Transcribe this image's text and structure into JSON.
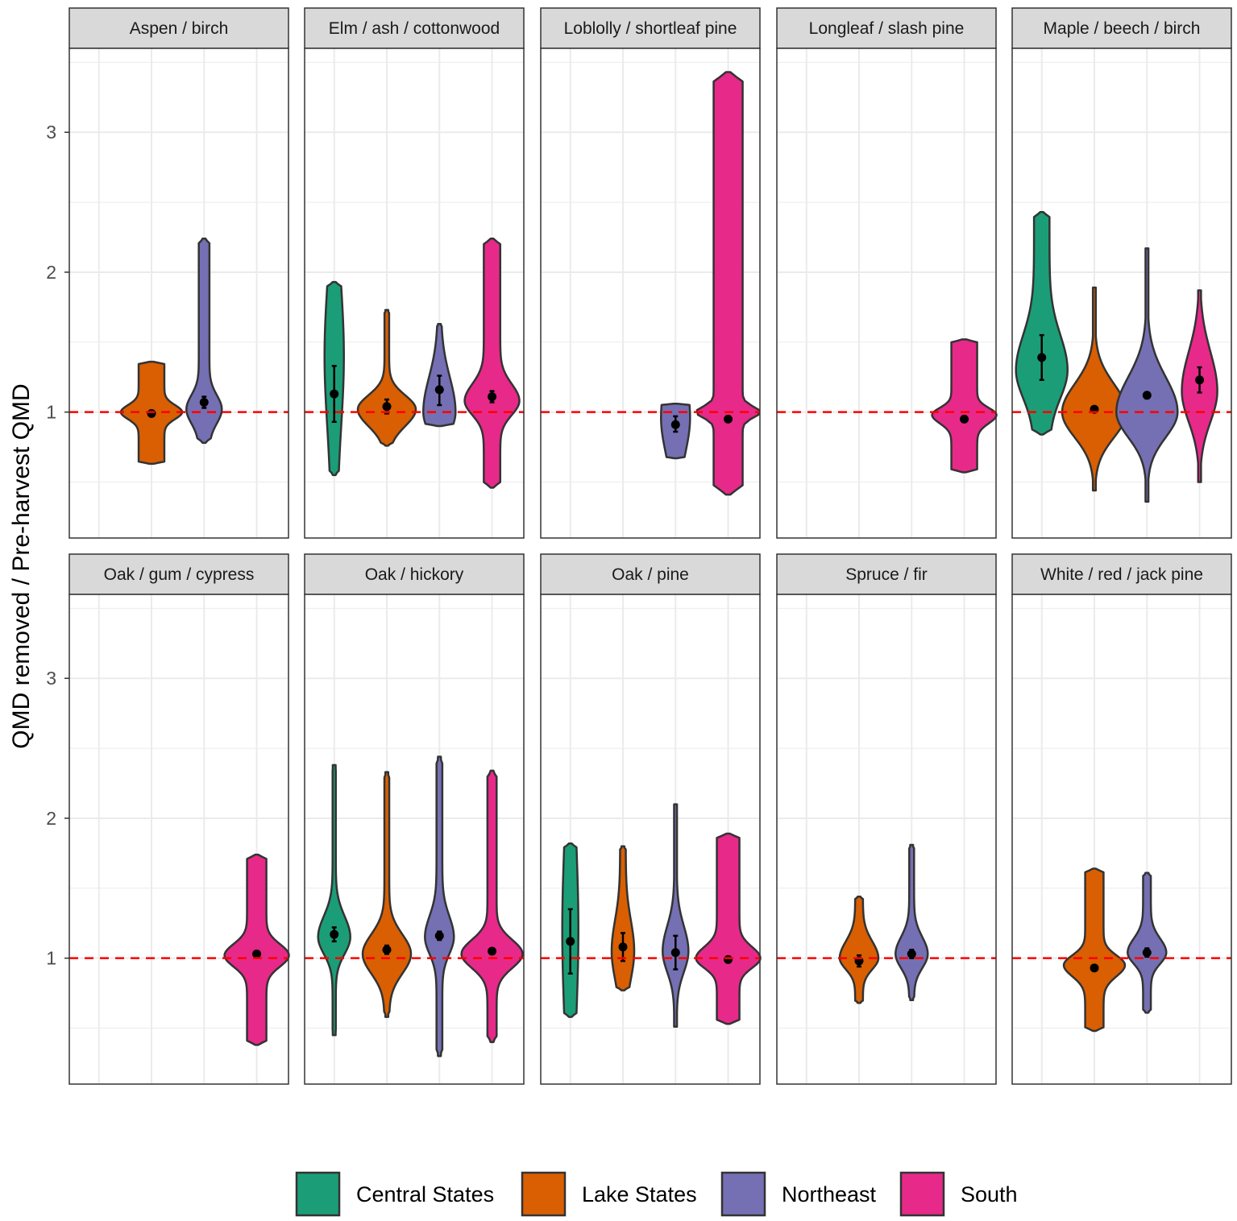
{
  "chart_data": {
    "type": "violin",
    "ylabel": "QMD removed / Pre-harvest QMD",
    "xlabel": "",
    "ylim": [
      0.1,
      3.6
    ],
    "yticks": [
      1,
      2,
      3
    ],
    "reference_line": {
      "y": 1,
      "color": "#ff0000",
      "style": "dashed"
    },
    "regions": [
      "Central States",
      "Lake States",
      "Northeast",
      "South"
    ],
    "colors": {
      "Central States": "#1b9e77",
      "Lake States": "#d95f02",
      "Northeast": "#7570b3",
      "South": "#e7298a"
    },
    "legend": {
      "position": "bottom",
      "labels": [
        "Central States",
        "Lake States",
        "Northeast",
        "South"
      ]
    },
    "panels": [
      {
        "title": "Aspen / birch",
        "violins": [
          {
            "region": "Lake States",
            "mean": 0.99,
            "ci": [
              0.97,
              1.01
            ],
            "min": 0.63,
            "max": 1.36,
            "mode": 1.0,
            "peak": 0.42,
            "sdLow": 0.05,
            "sdHigh": 0.05,
            "halfWidth": 0.95
          },
          {
            "region": "Northeast",
            "mean": 1.07,
            "ci": [
              1.03,
              1.11
            ],
            "min": 0.78,
            "max": 2.24,
            "mode": 1.02,
            "peak": 0.3,
            "sdLow": 0.1,
            "sdHigh": 0.1,
            "halfWidth": 0.55
          }
        ]
      },
      {
        "title": "Elm / ash / cottonwood",
        "violins": [
          {
            "region": "Central States",
            "mean": 1.13,
            "ci": [
              0.93,
              1.33
            ],
            "min": 0.55,
            "max": 1.93,
            "mode": 1.4,
            "peak": 0.3,
            "sdLow": 0.5,
            "sdHigh": 0.5,
            "halfWidth": 0.3
          },
          {
            "region": "Lake States",
            "mean": 1.04,
            "ci": [
              0.99,
              1.09
            ],
            "min": 0.76,
            "max": 1.73,
            "mode": 1.02,
            "peak": 0.08,
            "sdLow": 0.12,
            "sdHigh": 0.1,
            "halfWidth": 0.9
          },
          {
            "region": "Northeast",
            "mean": 1.16,
            "ci": [
              1.05,
              1.26
            ],
            "min": 0.9,
            "max": 1.63,
            "mode": 1.0,
            "peak": 0.1,
            "sdLow": 0.15,
            "sdHigh": 0.25,
            "halfWidth": 0.5
          },
          {
            "region": "South",
            "mean": 1.11,
            "ci": [
              1.07,
              1.15
            ],
            "min": 0.46,
            "max": 2.24,
            "mode": 1.08,
            "peak": 0.3,
            "sdLow": 0.1,
            "sdHigh": 0.12,
            "halfWidth": 0.85
          }
        ]
      },
      {
        "title": "Loblolly / shortleaf pine",
        "violins": [
          {
            "region": "Northeast",
            "mean": 0.91,
            "ci": [
              0.86,
              0.97
            ],
            "min": 0.67,
            "max": 1.06,
            "mode": 0.96,
            "peak": 0.2,
            "sdLow": 0.25,
            "sdHigh": 0.3,
            "halfWidth": 0.45
          },
          {
            "region": "South",
            "mean": 0.95,
            "ci": [
              0.93,
              0.97
            ],
            "min": 0.41,
            "max": 3.43,
            "mode": 1.0,
            "peak": 0.45,
            "sdLow": 0.04,
            "sdHigh": 0.04,
            "halfWidth": 1.0
          }
        ]
      },
      {
        "title": "Longleaf / slash pine",
        "violins": [
          {
            "region": "South",
            "mean": 0.95,
            "ci": [
              0.93,
              0.97
            ],
            "min": 0.57,
            "max": 1.52,
            "mode": 0.98,
            "peak": 0.4,
            "sdLow": 0.06,
            "sdHigh": 0.05,
            "halfWidth": 1.0
          }
        ]
      },
      {
        "title": "Maple / beech / birch",
        "violins": [
          {
            "region": "Central States",
            "mean": 1.39,
            "ci": [
              1.23,
              1.55
            ],
            "min": 0.84,
            "max": 2.43,
            "mode": 1.3,
            "peak": 0.3,
            "sdLow": 0.2,
            "sdHigh": 0.25,
            "halfWidth": 0.8
          },
          {
            "region": "Lake States",
            "mean": 1.02,
            "ci": [
              1.0,
              1.04
            ],
            "min": 0.44,
            "max": 1.89,
            "mode": 1.0,
            "peak": 0.02,
            "sdLow": 0.18,
            "sdHigh": 0.2,
            "halfWidth": 1.0
          },
          {
            "region": "Northeast",
            "mean": 1.12,
            "ci": [
              1.1,
              1.14
            ],
            "min": 0.36,
            "max": 2.17,
            "mode": 1.0,
            "peak": 0.02,
            "sdLow": 0.18,
            "sdHigh": 0.25,
            "halfWidth": 0.95
          },
          {
            "region": "South",
            "mean": 1.23,
            "ci": [
              1.14,
              1.32
            ],
            "min": 0.5,
            "max": 1.87,
            "mode": 1.15,
            "peak": 0.02,
            "sdLow": 0.22,
            "sdHigh": 0.28,
            "halfWidth": 0.55
          }
        ]
      },
      {
        "title": "Oak / gum / cypress",
        "violins": [
          {
            "region": "South",
            "mean": 1.03,
            "ci": [
              1.01,
              1.05
            ],
            "min": 0.38,
            "max": 1.74,
            "mode": 1.02,
            "peak": 0.3,
            "sdLow": 0.08,
            "sdHigh": 0.08,
            "halfWidth": 1.0
          }
        ]
      },
      {
        "title": "Oak / hickory",
        "violins": [
          {
            "region": "Central States",
            "mean": 1.17,
            "ci": [
              1.12,
              1.22
            ],
            "min": 0.45,
            "max": 2.38,
            "mode": 1.15,
            "peak": 0.1,
            "sdLow": 0.12,
            "sdHigh": 0.15,
            "halfWidth": 0.5
          },
          {
            "region": "Lake States",
            "mean": 1.06,
            "ci": [
              1.03,
              1.09
            ],
            "min": 0.58,
            "max": 2.33,
            "mode": 1.03,
            "peak": 0.1,
            "sdLow": 0.14,
            "sdHigh": 0.14,
            "halfWidth": 0.75
          },
          {
            "region": "Northeast",
            "mean": 1.16,
            "ci": [
              1.13,
              1.19
            ],
            "min": 0.3,
            "max": 2.44,
            "mode": 1.15,
            "peak": 0.2,
            "sdLow": 0.12,
            "sdHigh": 0.15,
            "halfWidth": 0.45
          },
          {
            "region": "South",
            "mean": 1.05,
            "ci": [
              1.03,
              1.07
            ],
            "min": 0.4,
            "max": 2.34,
            "mode": 1.03,
            "peak": 0.15,
            "sdLow": 0.1,
            "sdHigh": 0.1,
            "halfWidth": 0.95
          }
        ]
      },
      {
        "title": "Oak / pine",
        "violins": [
          {
            "region": "Central States",
            "mean": 1.12,
            "ci": [
              0.89,
              1.35
            ],
            "min": 0.58,
            "max": 1.82,
            "mode": 1.2,
            "peak": 0.4,
            "sdLow": 0.6,
            "sdHigh": 0.6,
            "halfWidth": 0.25
          },
          {
            "region": "Lake States",
            "mean": 1.08,
            "ci": [
              0.98,
              1.18
            ],
            "min": 0.77,
            "max": 1.8,
            "mode": 1.05,
            "peak": 0.25,
            "sdLow": 0.2,
            "sdHigh": 0.22,
            "halfWidth": 0.35
          },
          {
            "region": "Northeast",
            "mean": 1.04,
            "ci": [
              0.92,
              1.16
            ],
            "min": 0.51,
            "max": 2.1,
            "mode": 1.05,
            "peak": 0.1,
            "sdLow": 0.15,
            "sdHigh": 0.18,
            "halfWidth": 0.4
          },
          {
            "region": "South",
            "mean": 0.99,
            "ci": [
              0.97,
              1.01
            ],
            "min": 0.53,
            "max": 1.89,
            "mode": 1.0,
            "peak": 0.35,
            "sdLow": 0.07,
            "sdHigh": 0.08,
            "halfWidth": 1.0
          }
        ]
      },
      {
        "title": "Spruce / fir",
        "violins": [
          {
            "region": "Lake States",
            "mean": 0.98,
            "ci": [
              0.94,
              1.02
            ],
            "min": 0.68,
            "max": 1.44,
            "mode": 1.0,
            "peak": 0.2,
            "sdLow": 0.08,
            "sdHigh": 0.12,
            "halfWidth": 0.6
          },
          {
            "region": "Northeast",
            "mean": 1.03,
            "ci": [
              1.0,
              1.06
            ],
            "min": 0.7,
            "max": 1.81,
            "mode": 1.03,
            "peak": 0.15,
            "sdLow": 0.1,
            "sdHigh": 0.12,
            "halfWidth": 0.5
          }
        ]
      },
      {
        "title": "White / red / jack pine",
        "violins": [
          {
            "region": "Lake States",
            "mean": 0.93,
            "ci": [
              0.91,
              0.95
            ],
            "min": 0.48,
            "max": 1.64,
            "mode": 0.95,
            "peak": 0.3,
            "sdLow": 0.08,
            "sdHigh": 0.07,
            "halfWidth": 0.95
          },
          {
            "region": "Northeast",
            "mean": 1.04,
            "ci": [
              1.01,
              1.07
            ],
            "min": 0.61,
            "max": 1.61,
            "mode": 1.04,
            "peak": 0.2,
            "sdLow": 0.08,
            "sdHigh": 0.1,
            "halfWidth": 0.6
          }
        ]
      }
    ]
  }
}
